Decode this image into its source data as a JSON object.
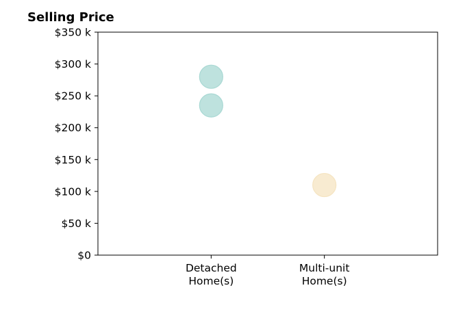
{
  "chart_data": {
    "type": "scatter",
    "title": "Selling Price",
    "xlabel": "",
    "ylabel": "",
    "categories": [
      [
        "Detached",
        "Home(s)"
      ],
      [
        "Multi-unit",
        "Home(s)"
      ]
    ],
    "xlim": [
      -1,
      2
    ],
    "ylim": [
      0,
      350000
    ],
    "y_ticks": [
      0,
      50000,
      100000,
      150000,
      200000,
      250000,
      300000,
      350000
    ],
    "y_tick_labels": [
      "$0",
      "$50 k",
      "$100 k",
      "$150 k",
      "$200 k",
      "$250 k",
      "$300 k",
      "$350 k"
    ],
    "grid": false,
    "points": [
      {
        "category": 0,
        "value": 280000,
        "color": "#a8d8d3"
      },
      {
        "category": 0,
        "value": 235000,
        "color": "#a8d8d3"
      },
      {
        "category": 1,
        "value": 110000,
        "color": "#f5e4c1"
      }
    ]
  }
}
